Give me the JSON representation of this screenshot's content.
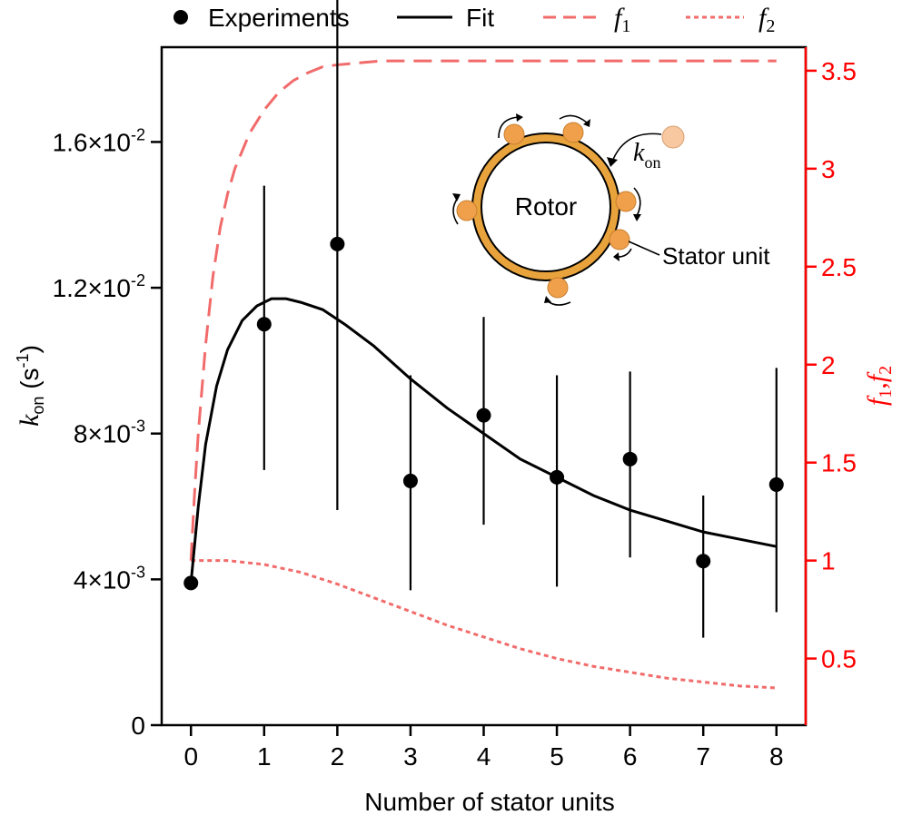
{
  "chart_data": {
    "type": "scatter",
    "title": "",
    "xlabel": "Number of stator units",
    "ylabel": {
      "main": "k",
      "sub": "on",
      "unit_open": " (s",
      "unit_sup": "-1",
      "unit_close": ")"
    },
    "ylabel_right": {
      "f1": "f",
      "f1_sub": "1",
      "sep": ",",
      "f2": "f",
      "f2_sub": "2"
    },
    "xlim": [
      -0.4,
      8.4
    ],
    "ylim": [
      0,
      0.0186
    ],
    "ylim_right": [
      0.16,
      3.62
    ],
    "x_ticks": [
      0,
      1,
      2,
      3,
      4,
      5,
      6,
      7,
      8
    ],
    "x_tick_labels": [
      "0",
      "1",
      "2",
      "3",
      "4",
      "5",
      "6",
      "7",
      "8"
    ],
    "y_ticks": [
      0,
      0.004,
      0.008,
      0.012,
      0.016
    ],
    "y_tick_labels": [
      {
        "base": "0",
        "exp": ""
      },
      {
        "base": "4×10",
        "exp": "-3"
      },
      {
        "base": "8×10",
        "exp": "-3"
      },
      {
        "base": "1.2×10",
        "exp": "-2"
      },
      {
        "base": "1.6×10",
        "exp": "-2"
      }
    ],
    "y_right_ticks": [
      0.5,
      1,
      1.5,
      2,
      2.5,
      3,
      3.5
    ],
    "y_right_tick_labels": [
      "0.5",
      "1",
      "1.5",
      "2",
      "2.5",
      "3",
      "3.5"
    ],
    "legend": {
      "placement": "top",
      "entries": [
        {
          "label": "Experiments",
          "style": "marker"
        },
        {
          "label": "Fit",
          "style": "solid"
        },
        {
          "label": "f",
          "sub": "1",
          "style": "dashed"
        },
        {
          "label": "f",
          "sub": "2",
          "style": "dotted"
        }
      ]
    },
    "series": [
      {
        "name": "Experiments",
        "kind": "points_with_error",
        "axis": "left",
        "x": [
          0,
          1,
          2,
          3,
          4,
          5,
          6,
          7,
          8
        ],
        "y": [
          0.0039,
          0.011,
          0.0132,
          0.0067,
          0.0085,
          0.0068,
          0.0073,
          0.0045,
          0.0066
        ],
        "err_low": [
          0.0039,
          0.007,
          0.0059,
          0.0037,
          0.0055,
          0.0038,
          0.0046,
          0.0024,
          0.0031
        ],
        "err_high": [
          0.0039,
          0.0148,
          0.02,
          0.0096,
          0.0112,
          0.0096,
          0.0097,
          0.0063,
          0.0098
        ]
      },
      {
        "name": "Fit",
        "kind": "line",
        "axis": "left",
        "x": [
          0,
          0.1,
          0.2,
          0.35,
          0.5,
          0.7,
          0.9,
          1.1,
          1.3,
          1.5,
          1.8,
          2.1,
          2.5,
          3,
          3.5,
          4,
          4.5,
          5,
          5.5,
          6,
          6.5,
          7,
          7.5,
          8
        ],
        "y": [
          0.0039,
          0.006,
          0.0077,
          0.0093,
          0.0103,
          0.0111,
          0.0115,
          0.0117,
          0.0117,
          0.0116,
          0.0114,
          0.011,
          0.0104,
          0.0095,
          0.0087,
          0.008,
          0.0073,
          0.0068,
          0.0063,
          0.0059,
          0.0056,
          0.0053,
          0.0051,
          0.0049
        ]
      },
      {
        "name": "f1",
        "kind": "line",
        "axis": "right",
        "x": [
          0,
          0.05,
          0.1,
          0.2,
          0.3,
          0.4,
          0.5,
          0.6,
          0.8,
          1,
          1.2,
          1.4,
          1.6,
          1.8,
          2,
          2.3,
          2.6,
          3,
          3.5,
          4,
          5,
          6,
          7,
          8
        ],
        "y": [
          1.0,
          1.35,
          1.65,
          2.1,
          2.45,
          2.7,
          2.87,
          3.0,
          3.18,
          3.3,
          3.39,
          3.45,
          3.49,
          3.52,
          3.53,
          3.54,
          3.55,
          3.55,
          3.55,
          3.55,
          3.55,
          3.55,
          3.55,
          3.55
        ]
      },
      {
        "name": "f2",
        "kind": "line",
        "axis": "right",
        "x": [
          0,
          0.5,
          1,
          1.5,
          2,
          2.5,
          3,
          3.5,
          4,
          4.5,
          5,
          5.5,
          6,
          6.5,
          7,
          7.5,
          8
        ],
        "y": [
          1.0,
          1.0,
          0.98,
          0.94,
          0.88,
          0.81,
          0.74,
          0.67,
          0.61,
          0.55,
          0.5,
          0.46,
          0.43,
          0.4,
          0.38,
          0.36,
          0.35
        ]
      }
    ]
  },
  "inset": {
    "rotor_label": "Rotor",
    "stator_label": "Stator unit",
    "rate_main": "k",
    "rate_sub": "on"
  },
  "colors": {
    "axis_right": "#ff0000",
    "f_lines": "#f26b6b",
    "stator_fill": "#f0a04b",
    "stator_free": "#f8c8a0",
    "rotor_ring": "#e8a33c"
  }
}
